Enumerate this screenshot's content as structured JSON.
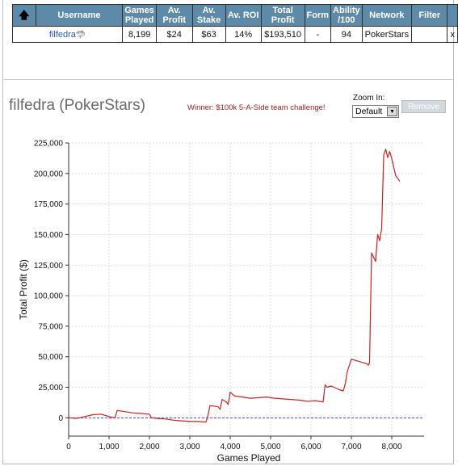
{
  "table": {
    "headers": [
      "",
      "Username",
      "Games Played",
      "Av. Profit",
      "Av. Stake",
      "Av. ROI",
      "Total Profit",
      "Form",
      "Ability /100",
      "Network",
      "Filter",
      ""
    ],
    "row": {
      "username": "filfedra",
      "games_played": "8,199",
      "av_profit": "$24",
      "av_stake": "$63",
      "av_roi": "14%",
      "total_profit": "$193,510",
      "form": "-",
      "ability": "94",
      "network": "PokerStars",
      "filter": "",
      "close": "x"
    }
  },
  "header": {
    "title": "filfedra (PokerStars)",
    "winner": "Winner: $100k 5-A-Side team challenge!",
    "zoom_label": "Zoom In:",
    "zoom_value": "Default",
    "remove_label": "Remove"
  },
  "colors": {
    "header_bg": "#5d8aa8",
    "line": "#cc2222",
    "zero_line": "#6b3fa0"
  },
  "chart_data": {
    "type": "line",
    "xlabel": "Games Played",
    "ylabel": "Total Profit ($)",
    "xlim": [
      0,
      8800
    ],
    "ylim": [
      -15000,
      225000
    ],
    "x_ticks": [
      0,
      1000,
      2000,
      3000,
      4000,
      5000,
      6000,
      7000,
      8000
    ],
    "x_tick_labels": [
      "0",
      "1,000",
      "2,000",
      "3,000",
      "4,000",
      "5,000",
      "6,000",
      "7,000",
      "8,000"
    ],
    "y_ticks": [
      0,
      25000,
      50000,
      75000,
      100000,
      125000,
      150000,
      175000,
      200000,
      225000
    ],
    "y_tick_labels": [
      "0",
      "25,000",
      "50,000",
      "75,000",
      "100,000",
      "125,000",
      "150,000",
      "175,000",
      "200,000",
      "225,000"
    ],
    "grid": true,
    "zero_line": "dashed",
    "series": [
      {
        "x": [
          0,
          200,
          400,
          600,
          800,
          1000,
          1150,
          1200,
          1400,
          1600,
          1800,
          2000,
          2050,
          2200,
          2400,
          2600,
          2800,
          3000,
          3200,
          3400,
          3450,
          3500,
          3700,
          3750,
          3800,
          3900,
          3950,
          4000,
          4100,
          4300,
          4500,
          4700,
          4900,
          5100,
          5300,
          5500,
          5700,
          5900,
          6100,
          6300,
          6350,
          6400,
          6500,
          6700,
          6800,
          6850,
          6900,
          7000,
          7200,
          7400,
          7420,
          7450,
          7500,
          7600,
          7650,
          7700,
          7750,
          7800,
          7850,
          7900,
          7950,
          8000,
          8050,
          8100,
          8150,
          8199
        ],
        "y": [
          0,
          -500,
          1000,
          2500,
          3000,
          1000,
          0,
          6000,
          5000,
          4000,
          3500,
          3000,
          0,
          -500,
          -1000,
          -2000,
          -2500,
          -3000,
          -3000,
          -3500,
          2000,
          10000,
          9000,
          7000,
          15000,
          13000,
          11000,
          21000,
          18000,
          17000,
          16000,
          16500,
          17000,
          16000,
          15500,
          15000,
          14500,
          13500,
          14000,
          13000,
          27000,
          25000,
          26000,
          23000,
          22000,
          28000,
          38000,
          48000,
          46000,
          44000,
          43000,
          45000,
          135000,
          128000,
          150000,
          145000,
          155000,
          215000,
          220000,
          213000,
          218000,
          212000,
          205000,
          198000,
          196000,
          193510
        ]
      }
    ]
  }
}
